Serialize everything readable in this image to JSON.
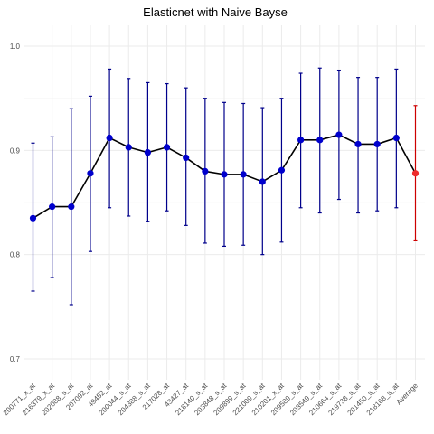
{
  "chart_data": {
    "type": "line",
    "title": "Elasticnet with Naive Bayse",
    "xlabel": "",
    "ylabel": "",
    "ylim": [
      0.68,
      1.02
    ],
    "yticks": [
      0.7,
      0.8,
      0.9,
      1.0
    ],
    "ytick_labels": [
      "0.7",
      "0.8",
      "0.9",
      "1.0"
    ],
    "grid": true,
    "legend": "none",
    "categories": [
      "200771_x_at",
      "216379_x_at",
      "202088_s_at",
      "207092_at",
      "49452_at",
      "200044_s_at",
      "204388_s_at",
      "217028_at",
      "43427_at",
      "218140_s_at",
      "203848_s_at",
      "209899_s_at",
      "221009_s_at",
      "210201_x_at",
      "209589_s_at",
      "203549_s_at",
      "210664_s_at",
      "219738_s_at",
      "201450_s_at",
      "218168_s_at",
      "Average"
    ],
    "values": [
      0.835,
      0.846,
      0.846,
      0.878,
      0.912,
      0.903,
      0.898,
      0.903,
      0.893,
      0.88,
      0.877,
      0.877,
      0.87,
      0.881,
      0.91,
      0.91,
      0.915,
      0.906,
      0.906,
      0.912,
      0.878
    ],
    "lower": [
      0.765,
      0.778,
      0.752,
      0.803,
      0.845,
      0.837,
      0.832,
      0.842,
      0.828,
      0.811,
      0.808,
      0.809,
      0.8,
      0.812,
      0.845,
      0.84,
      0.853,
      0.84,
      0.842,
      0.845,
      0.814
    ],
    "upper": [
      0.907,
      0.913,
      0.94,
      0.952,
      0.978,
      0.969,
      0.965,
      0.964,
      0.96,
      0.95,
      0.946,
      0.945,
      0.941,
      0.95,
      0.974,
      0.979,
      0.977,
      0.97,
      0.97,
      0.978,
      0.943
    ],
    "colors": {
      "line": "#000000",
      "point": "#0000cd",
      "errorbar": "#00008b",
      "average_point": "#ee2c2c",
      "average_errorbar": "#cd0000",
      "grid": "#ebebeb"
    }
  }
}
